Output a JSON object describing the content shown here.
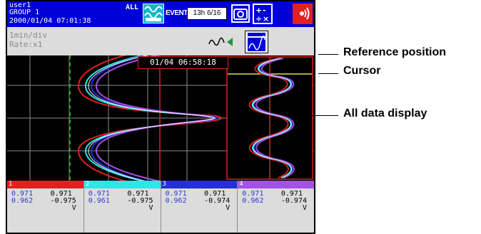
{
  "status": {
    "user": "user1",
    "group": "GROUP 1",
    "datetime": "2000/01/04 07:01:38",
    "all_label": "ALL",
    "event_label": "EVENT",
    "event_box": "13h 6/16"
  },
  "subbar": {
    "line1": "1min/div",
    "line2": "Rate:x1"
  },
  "chart": {
    "timestamp": "01/04 06:58:18"
  },
  "channels": [
    {
      "num": "1",
      "color": "#e32020",
      "min1": "0.971",
      "min2": "0.962",
      "max1": "0.971",
      "max2": "-0.975",
      "unit": "V"
    },
    {
      "num": "2",
      "color": "#2ee6e6",
      "min1": "0.971",
      "min2": "0.961",
      "max1": "0.971",
      "max2": "-0.975",
      "unit": "V"
    },
    {
      "num": "3",
      "color": "#2330d6",
      "min1": "0.971",
      "min2": "0.962",
      "max1": "0.971",
      "max2": "-0.974",
      "unit": "V"
    },
    {
      "num": "4",
      "color": "#a451e6",
      "min1": "0.971",
      "min2": "0.962",
      "max1": "0.971",
      "max2": "-0.974",
      "unit": "V"
    }
  ],
  "annotations": {
    "reference": "Reference position",
    "cursor": "Cursor",
    "all_data": "All data display"
  },
  "colors": {
    "status_bg": "#0000d8",
    "alarm": "#e32020",
    "cursor_line": "#e8e050",
    "reference_line": "#2aa52a"
  }
}
